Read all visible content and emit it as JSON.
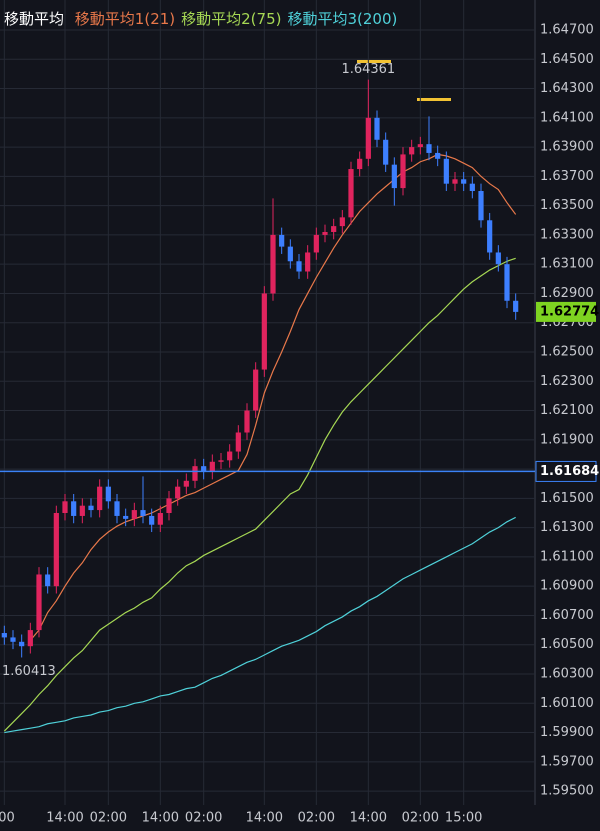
{
  "chart_data": {
    "type": "candlestick",
    "legend_title": "移動平均",
    "up_color": "#e0245e",
    "down_color": "#3d7fff",
    "grid": true,
    "ylim": [
      1.59405,
      1.64905
    ],
    "yticks": [
      {
        "value": 1.647,
        "label": "1.64700"
      },
      {
        "value": 1.645,
        "label": "1.64500"
      },
      {
        "value": 1.643,
        "label": "1.64300"
      },
      {
        "value": 1.641,
        "label": "1.64100"
      },
      {
        "value": 1.639,
        "label": "1.63900"
      },
      {
        "value": 1.637,
        "label": "1.63700"
      },
      {
        "value": 1.635,
        "label": "1.63500"
      },
      {
        "value": 1.633,
        "label": "1.63300"
      },
      {
        "value": 1.631,
        "label": "1.63100"
      },
      {
        "value": 1.629,
        "label": "1.62900"
      },
      {
        "value": 1.627,
        "label": "1.62700"
      },
      {
        "value": 1.625,
        "label": "1.62500"
      },
      {
        "value": 1.623,
        "label": "1.62300"
      },
      {
        "value": 1.621,
        "label": "1.62100"
      },
      {
        "value": 1.619,
        "label": "1.61900"
      },
      {
        "value": 1.617,
        "label": "1.61700"
      },
      {
        "value": 1.615,
        "label": "1.61500"
      },
      {
        "value": 1.613,
        "label": "1.61300"
      },
      {
        "value": 1.611,
        "label": "1.61100"
      },
      {
        "value": 1.609,
        "label": "1.60900"
      },
      {
        "value": 1.607,
        "label": "1.60700"
      },
      {
        "value": 1.605,
        "label": "1.60500"
      },
      {
        "value": 1.603,
        "label": "1.60300"
      },
      {
        "value": 1.601,
        "label": "1.60100"
      },
      {
        "value": 1.599,
        "label": "1.59900"
      },
      {
        "value": 1.597,
        "label": "1.59700"
      },
      {
        "value": 1.595,
        "label": "1.59500"
      }
    ],
    "categories": [
      ":00",
      null,
      null,
      null,
      null,
      null,
      null,
      "14:00",
      null,
      null,
      null,
      null,
      "02:00",
      null,
      null,
      null,
      null,
      null,
      "14:00",
      null,
      null,
      null,
      null,
      "02:00",
      null,
      null,
      null,
      null,
      null,
      null,
      "14:00",
      null,
      null,
      null,
      null,
      null,
      "02:00",
      null,
      null,
      null,
      null,
      null,
      "14:00",
      null,
      null,
      null,
      null,
      null,
      "02:00",
      null,
      null,
      null,
      null,
      "15:00",
      null,
      null,
      null,
      null,
      null,
      null
    ],
    "open": [
      1.6058,
      1.6055,
      1.6052,
      1.6049,
      1.606,
      1.6098,
      1.609,
      1.614,
      1.6148,
      1.6138,
      1.6145,
      1.6142,
      1.6158,
      1.6148,
      1.6138,
      1.6136,
      1.6142,
      1.6138,
      1.6132,
      1.614,
      1.615,
      1.6158,
      1.6162,
      1.6172,
      1.6168,
      1.6175,
      1.6176,
      1.6182,
      1.6195,
      1.621,
      1.6238,
      1.629,
      1.633,
      1.6322,
      1.6312,
      1.6305,
      1.6318,
      1.633,
      1.6332,
      1.6336,
      1.6342,
      1.6375,
      1.6382,
      1.641,
      1.6395,
      1.6378,
      1.6362,
      1.6385,
      1.639,
      1.6392,
      1.6386,
      1.6382,
      1.6365,
      1.6368,
      1.6365,
      1.636,
      1.634,
      1.6318,
      1.631,
      1.6285
    ],
    "high": [
      1.6063,
      1.606,
      1.6057,
      1.6065,
      1.6103,
      1.6103,
      1.6145,
      1.6153,
      1.6153,
      1.615,
      1.615,
      1.6163,
      1.6163,
      1.6153,
      1.6143,
      1.6147,
      1.6165,
      1.6143,
      1.6145,
      1.6155,
      1.6163,
      1.6167,
      1.6177,
      1.6177,
      1.618,
      1.6181,
      1.6187,
      1.62,
      1.6215,
      1.6243,
      1.6295,
      1.6355,
      1.6335,
      1.6327,
      1.6317,
      1.6323,
      1.6335,
      1.6337,
      1.6341,
      1.6347,
      1.638,
      1.6387,
      1.64361,
      1.6415,
      1.64,
      1.6383,
      1.639,
      1.6395,
      1.6397,
      1.6411,
      1.6391,
      1.6387,
      1.6373,
      1.6373,
      1.637,
      1.6365,
      1.6345,
      1.6323,
      1.6315,
      1.629
    ],
    "low": [
      1.605,
      1.6047,
      1.60413,
      1.6044,
      1.6055,
      1.6085,
      1.6085,
      1.6135,
      1.6133,
      1.6133,
      1.6137,
      1.6137,
      1.6143,
      1.6133,
      1.6131,
      1.6131,
      1.6133,
      1.6127,
      1.6127,
      1.6135,
      1.6145,
      1.6153,
      1.6157,
      1.6163,
      1.6163,
      1.617,
      1.6171,
      1.6177,
      1.619,
      1.6205,
      1.6233,
      1.6285,
      1.6317,
      1.6307,
      1.63,
      1.63,
      1.6313,
      1.6325,
      1.6327,
      1.6331,
      1.6337,
      1.637,
      1.6377,
      1.639,
      1.6373,
      1.635,
      1.6357,
      1.638,
      1.6385,
      1.6381,
      1.6377,
      1.636,
      1.636,
      1.636,
      1.6355,
      1.6335,
      1.6313,
      1.6305,
      1.628,
      1.6272
    ],
    "close": [
      1.6055,
      1.6052,
      1.6049,
      1.606,
      1.6098,
      1.609,
      1.614,
      1.6148,
      1.6138,
      1.6145,
      1.6142,
      1.6158,
      1.6148,
      1.6138,
      1.6136,
      1.6142,
      1.6138,
      1.6132,
      1.614,
      1.615,
      1.6158,
      1.6162,
      1.6172,
      1.6168,
      1.6175,
      1.6176,
      1.6182,
      1.6195,
      1.621,
      1.6238,
      1.629,
      1.633,
      1.6322,
      1.6312,
      1.6305,
      1.6318,
      1.633,
      1.6332,
      1.6336,
      1.6342,
      1.6375,
      1.6382,
      1.641,
      1.6395,
      1.6378,
      1.6362,
      1.6385,
      1.639,
      1.6392,
      1.6386,
      1.6382,
      1.6365,
      1.6368,
      1.6365,
      1.636,
      1.634,
      1.6318,
      1.631,
      1.6285,
      1.62774
    ],
    "current_price_color": "#7ed321",
    "price_line": 1.61684,
    "price_line_color": "#3b82f6",
    "series": [
      {
        "name": "移動平均1(21)",
        "color": "#e8784a",
        "values": [
          null,
          null,
          null,
          1.6053,
          1.606,
          1.6072,
          1.608,
          1.609,
          1.6099,
          1.6106,
          1.6115,
          1.6122,
          1.6127,
          1.6131,
          1.6134,
          1.6136,
          1.6138,
          1.614,
          1.6143,
          1.6146,
          1.6149,
          1.6152,
          1.6154,
          1.6157,
          1.616,
          1.6163,
          1.6166,
          1.6169,
          1.618,
          1.62,
          1.6222,
          1.6237,
          1.625,
          1.6264,
          1.6279,
          1.629,
          1.6301,
          1.6311,
          1.6321,
          1.633,
          1.6338,
          1.6346,
          1.6352,
          1.6358,
          1.6363,
          1.6368,
          1.6373,
          1.6376,
          1.638,
          1.6382,
          1.6385,
          1.6384,
          1.6382,
          1.6379,
          1.6376,
          1.637,
          1.6365,
          1.6361,
          1.6352,
          1.6344
        ]
      },
      {
        "name": "移動平均2(75)",
        "color": "#a6d854",
        "values": [
          1.5991,
          1.5997,
          1.6003,
          1.6009,
          1.6016,
          1.6022,
          1.6029,
          1.6035,
          1.6041,
          1.6046,
          1.6053,
          1.606,
          1.6064,
          1.6068,
          1.6072,
          1.6075,
          1.6079,
          1.6082,
          1.6088,
          1.6093,
          1.6099,
          1.6104,
          1.6107,
          1.6111,
          1.6114,
          1.6117,
          1.612,
          1.6123,
          1.6126,
          1.6129,
          1.6135,
          1.6141,
          1.6147,
          1.6153,
          1.6156,
          1.6166,
          1.6178,
          1.619,
          1.62,
          1.6209,
          1.6216,
          1.6222,
          1.6228,
          1.6234,
          1.624,
          1.6246,
          1.6252,
          1.6258,
          1.6264,
          1.627,
          1.6275,
          1.6281,
          1.6287,
          1.6293,
          1.6298,
          1.6302,
          1.6306,
          1.6309,
          1.6312,
          1.6314
        ]
      },
      {
        "name": "移動平均3(200)",
        "color": "#4fd1d9",
        "values": [
          1.599,
          1.5991,
          1.5992,
          1.5993,
          1.5994,
          1.5996,
          1.5997,
          1.5998,
          1.6,
          1.6001,
          1.6002,
          1.6004,
          1.6005,
          1.6007,
          1.6008,
          1.601,
          1.6011,
          1.6013,
          1.6015,
          1.6016,
          1.6018,
          1.602,
          1.6021,
          1.6024,
          1.6027,
          1.6029,
          1.6032,
          1.6035,
          1.6038,
          1.604,
          1.6043,
          1.6046,
          1.6049,
          1.6051,
          1.6053,
          1.6056,
          1.6059,
          1.6063,
          1.6066,
          1.6069,
          1.6073,
          1.6076,
          1.608,
          1.6083,
          1.6087,
          1.6091,
          1.6095,
          1.6098,
          1.6101,
          1.6104,
          1.6107,
          1.611,
          1.6113,
          1.6116,
          1.6119,
          1.6123,
          1.6127,
          1.613,
          1.6134,
          1.6137
        ]
      }
    ]
  }
}
